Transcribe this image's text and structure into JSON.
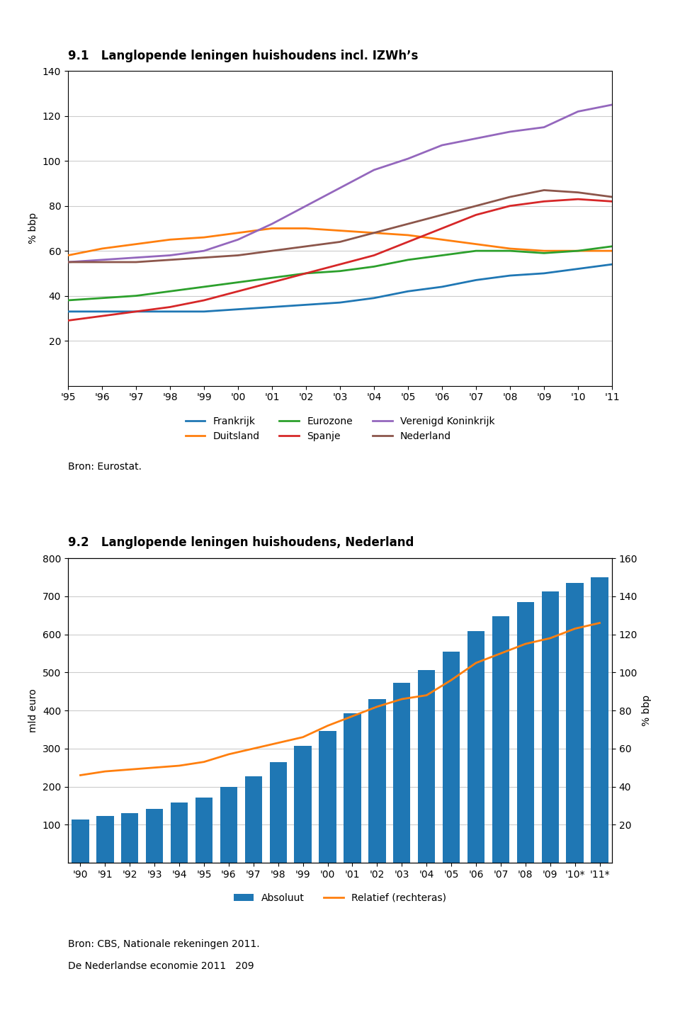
{
  "chart_data": [
    {
      "type": "line",
      "title": "9.1   Langlopende leningen huishoudens incl. IZWh’s",
      "ylabel": "% bbp",
      "categories": [
        "'95",
        "'96",
        "'97",
        "'98",
        "'99",
        "'00",
        "'01",
        "'02",
        "'03",
        "'04",
        "'05",
        "'06",
        "'07",
        "'08",
        "'09",
        "'10",
        "'11"
      ],
      "series": [
        {
          "name": "Frankrijk",
          "values": [
            33,
            33,
            33,
            33,
            33,
            34,
            35,
            36,
            37,
            39,
            42,
            44,
            47,
            49,
            50,
            52,
            54
          ]
        },
        {
          "name": "Duitsland",
          "values": [
            58,
            61,
            63,
            65,
            66,
            68,
            70,
            70,
            69,
            68,
            67,
            65,
            63,
            61,
            60,
            60,
            60
          ]
        },
        {
          "name": "Eurozone",
          "values": [
            38,
            39,
            40,
            42,
            44,
            46,
            48,
            50,
            51,
            53,
            56,
            58,
            60,
            60,
            59,
            60,
            62
          ]
        },
        {
          "name": "Spanje",
          "values": [
            29,
            31,
            33,
            35,
            38,
            42,
            46,
            50,
            54,
            58,
            64,
            70,
            76,
            80,
            82,
            83,
            82
          ]
        },
        {
          "name": "Verenigd Koninkrijk",
          "values": [
            55,
            56,
            57,
            58,
            60,
            65,
            72,
            80,
            88,
            96,
            101,
            107,
            110,
            113,
            115,
            122,
            125
          ]
        },
        {
          "name": "Nederland",
          "values": [
            55,
            55,
            55,
            56,
            57,
            58,
            60,
            62,
            64,
            68,
            72,
            76,
            80,
            84,
            87,
            86,
            84
          ]
        }
      ],
      "ylim": [
        0,
        140
      ],
      "yticks": [
        20,
        40,
        60,
        80,
        100,
        120,
        140
      ],
      "grid": true,
      "legend": "upper center",
      "annotations": [
        "Bron: Eurostat."
      ]
    },
    {
      "type": "bar",
      "title": "9.2   Langlopende leningen huishoudens, Nederland",
      "ylabel": "mld euro",
      "y2label": "% bbp",
      "categories": [
        "'90",
        "'91",
        "'92",
        "'93",
        "'94",
        "'95",
        "'96",
        "'97",
        "'98",
        "'99",
        "'00",
        "'01",
        "'02",
        "'03",
        "'04",
        "'05",
        "'06",
        "'07",
        "'08",
        "'09",
        "'10*",
        "'11*"
      ],
      "series": [
        {
          "name": "Absoluut",
          "type": "bar",
          "values": [
            113,
            122,
            131,
            142,
            158,
            172,
            200,
            228,
            265,
            308,
            347,
            393,
            430,
            473,
            507,
            555,
            608,
            648,
            685,
            712,
            735,
            750
          ]
        },
        {
          "name": "Relatief (rechteras)",
          "type": "line",
          "axis": "y2",
          "values": [
            46,
            48,
            49,
            50,
            51,
            53,
            57,
            60,
            63,
            66,
            72,
            77,
            82,
            86,
            88,
            96,
            105,
            110,
            115,
            118,
            123,
            126
          ]
        }
      ],
      "ylim": [
        0,
        800
      ],
      "yticks": [
        100,
        200,
        300,
        400,
        500,
        600,
        700,
        800
      ],
      "y2lim": [
        0,
        160
      ],
      "y2ticks": [
        20,
        40,
        60,
        80,
        100,
        120,
        140,
        160
      ],
      "grid": true,
      "legend": "upper center",
      "annotations": [
        "Bron: CBS, Nationale rekeningen 2011.",
        "De Nederlandse economie 2011   209"
      ]
    }
  ]
}
